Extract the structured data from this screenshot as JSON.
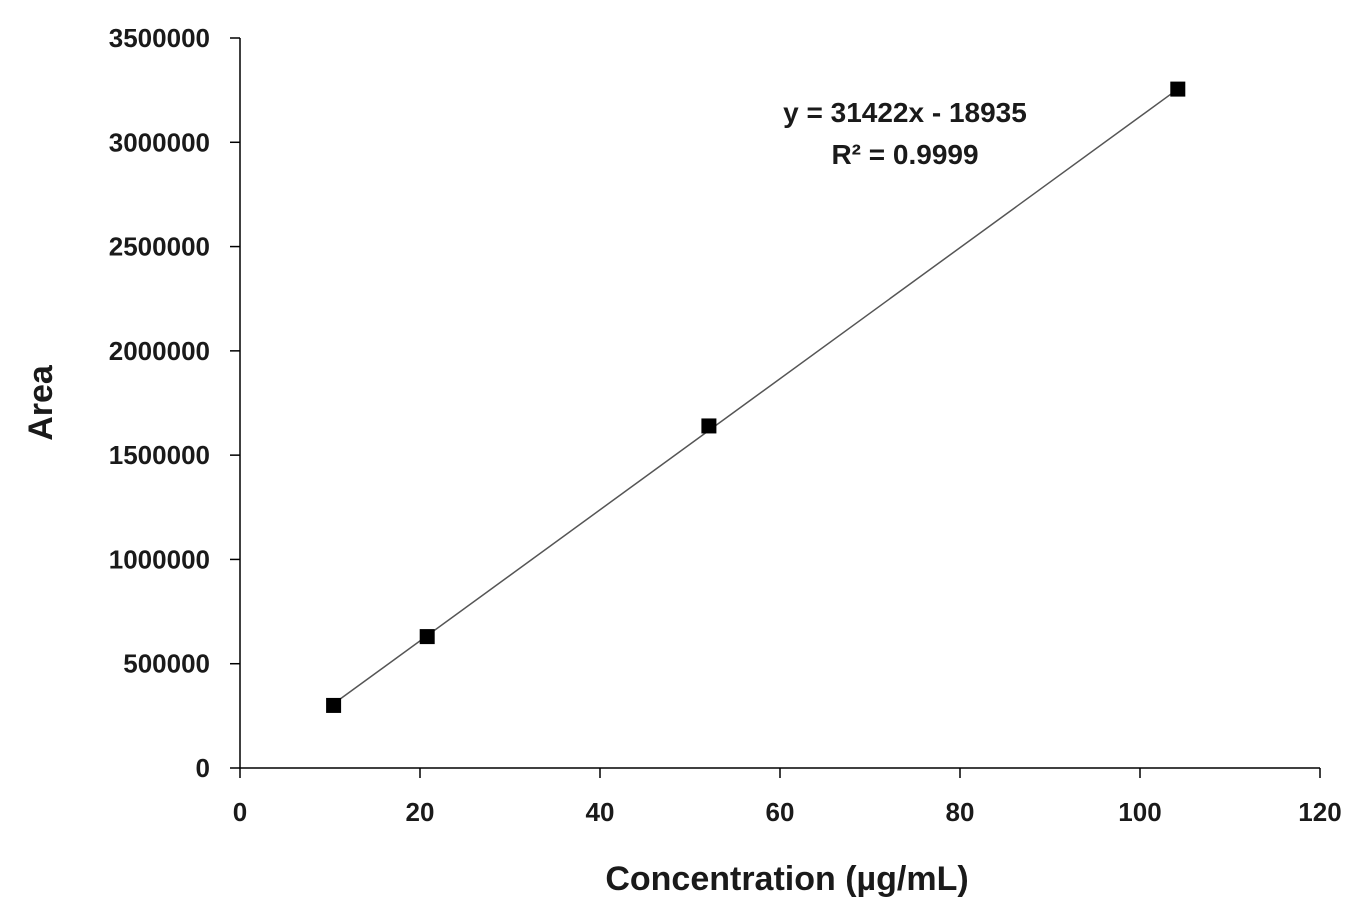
{
  "chart_data": {
    "type": "scatter",
    "xlabel": "Concentration (µg/mL)",
    "ylabel": "Area",
    "xlim": [
      0,
      120
    ],
    "ylim": [
      0,
      3500000
    ],
    "x_ticks": [
      0,
      20,
      40,
      60,
      80,
      100,
      120
    ],
    "y_ticks": [
      0,
      500000,
      1000000,
      1500000,
      2000000,
      2500000,
      3000000,
      3500000
    ],
    "x_tick_labels": [
      "0",
      "20",
      "40",
      "60",
      "80",
      "100",
      "120"
    ],
    "y_tick_labels": [
      "0",
      "500000",
      "1000000",
      "1500000",
      "2000000",
      "2500000",
      "3000000",
      "3500000"
    ],
    "grid": false,
    "legend": "none",
    "series": [
      {
        "marker": "square",
        "color": "#000000",
        "points": [
          {
            "x": 10.4,
            "y": 300000
          },
          {
            "x": 20.8,
            "y": 630000
          },
          {
            "x": 52.1,
            "y": 1640000
          },
          {
            "x": 104.2,
            "y": 3255000
          }
        ]
      }
    ],
    "trendline": {
      "type": "linear",
      "slope": 31422,
      "intercept": -18935,
      "x_range": [
        10.4,
        104.2
      ],
      "color": "#555555",
      "equation_label": "y = 31422x - 18935",
      "r2_label": "R² = 0.9999"
    }
  }
}
